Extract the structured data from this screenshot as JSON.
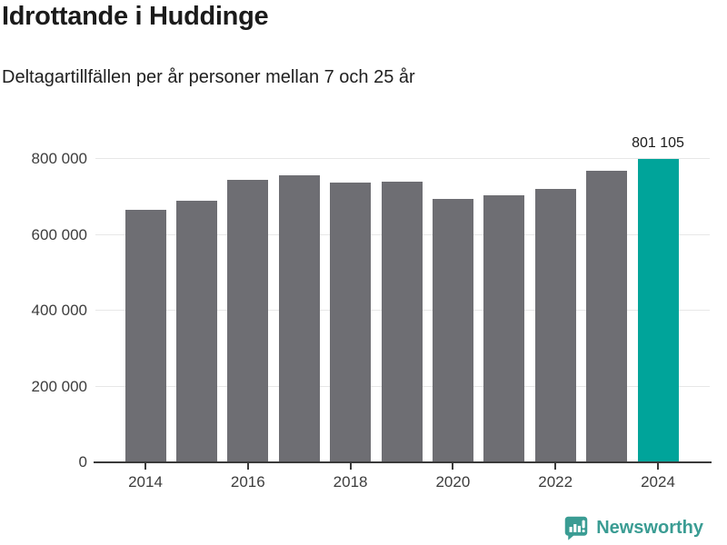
{
  "page": {
    "title": "Idrottande i Huddinge",
    "subtitle": "Deltagartillfällen per år personer mellan 7 och 25 år"
  },
  "chart_data": {
    "type": "bar",
    "title": "Idrottande i Huddinge",
    "subtitle": "Deltagartillfällen per år personer mellan 7 och 25 år",
    "categories": [
      "2014",
      "2015",
      "2016",
      "2017",
      "2018",
      "2019",
      "2020",
      "2021",
      "2022",
      "2023",
      "2024"
    ],
    "values": [
      667000,
      690000,
      746000,
      757000,
      739000,
      742000,
      696000,
      705000,
      721000,
      770000,
      801105
    ],
    "highlight_index": 10,
    "highlight_value_label": "801 105",
    "yticks": [
      0,
      200000,
      400000,
      600000,
      800000
    ],
    "ytick_labels": [
      "0",
      "200 000",
      "400 000",
      "600 000",
      "800 000"
    ],
    "xtick_labels": [
      "2014",
      "2016",
      "2018",
      "2020",
      "2022",
      "2024"
    ],
    "ylim": [
      0,
      885000
    ],
    "grid": "horizontal",
    "legend": "none",
    "bar_color": "#6e6e73",
    "highlight_color": "#00a49a",
    "gridline_color": "#e7e7e7",
    "axis_color": "#3a3a3a",
    "label_color": "#3d3d3d"
  },
  "footer": {
    "brand": "Newsworthy",
    "brand_color": "#3a9c93",
    "logo_icon": "bar-chart-speech-bubble-icon"
  }
}
